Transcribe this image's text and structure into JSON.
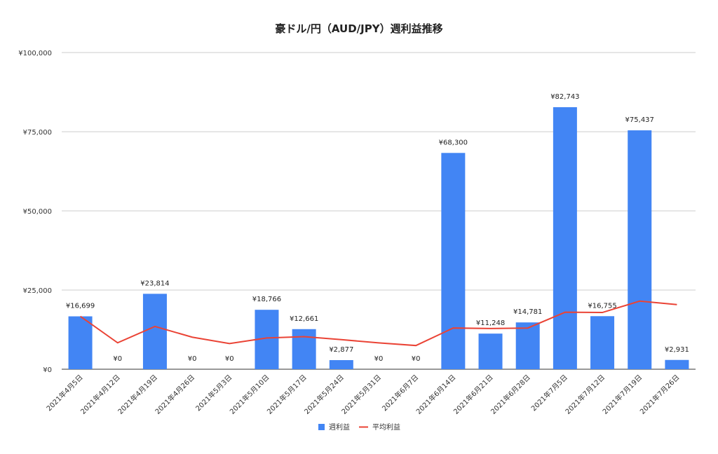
{
  "chart_data": {
    "type": "bar",
    "title": "豪ドル/円（AUD/JPY）週利益推移",
    "xlabel": "",
    "ylabel": "",
    "ylim": [
      0,
      100000
    ],
    "yticks": [
      0,
      25000,
      50000,
      75000,
      100000
    ],
    "ytick_labels": [
      "¥0",
      "¥25,000",
      "¥50,000",
      "¥75,000",
      "¥100,000"
    ],
    "grid": true,
    "legend_position": "bottom",
    "categories": [
      "2021年4月5日",
      "2021年4月12日",
      "2021年4月19日",
      "2021年4月26日",
      "2021年5月3日",
      "2021年5月10日",
      "2021年5月17日",
      "2021年5月24日",
      "2021年5月31日",
      "2021年6月7日",
      "2021年6月14日",
      "2021年6月21日",
      "2021年6月28日",
      "2021年7月5日",
      "2021年7月12日",
      "2021年7月19日",
      "2021年7月26日"
    ],
    "series": [
      {
        "name": "週利益",
        "type": "bar",
        "color": "#4285f4",
        "values": [
          16699,
          0,
          23814,
          0,
          0,
          18766,
          12661,
          2877,
          0,
          0,
          68300,
          11248,
          14781,
          82743,
          16755,
          75437,
          2931
        ],
        "data_labels": [
          "¥16,699",
          "¥0",
          "¥23,814",
          "¥0",
          "¥0",
          "¥18,766",
          "¥12,661",
          "¥2,877",
          "¥0",
          "¥0",
          "¥68,300",
          "¥11,248",
          "¥14,781",
          "¥82,743",
          "¥16,755",
          "¥75,437",
          "¥2,931"
        ]
      },
      {
        "name": "平均利益",
        "type": "line",
        "color": "#ea4335",
        "values": [
          16699,
          8350,
          13504,
          10128,
          8103,
          9880,
          10277,
          9352,
          8313,
          7482,
          13011,
          12864,
          13011,
          17992,
          17910,
          21505,
          20412
        ]
      }
    ]
  }
}
